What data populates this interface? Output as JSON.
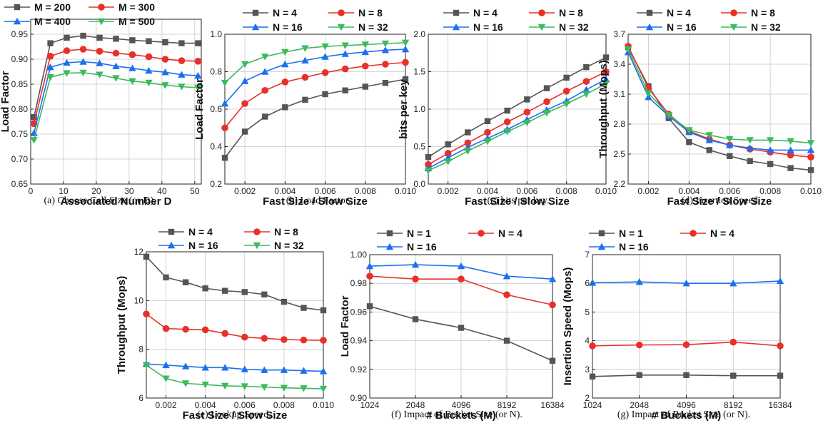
{
  "colors": {
    "gray": "#555555",
    "red": "#e8302a",
    "blue": "#1c6ff0",
    "green": "#3cba5d"
  },
  "chart_data": [
    {
      "id": "a",
      "type": "line",
      "caption": "(a)  Choose Cell Size (or D).",
      "xlabel": "Associated Number D",
      "ylabel": "Load Factor",
      "xlim": [
        0,
        52
      ],
      "ylim": [
        0.65,
        0.98
      ],
      "xticks": [
        "0",
        "10",
        "20",
        "30",
        "40",
        "50"
      ],
      "yticks": [
        "0.65",
        "0.70",
        "0.75",
        "0.80",
        "0.85",
        "0.90",
        "0.95"
      ],
      "x": [
        1,
        6,
        11,
        16,
        21,
        26,
        31,
        36,
        41,
        46,
        51
      ],
      "series": [
        {
          "name": "M = 200",
          "color": "gray",
          "marker": "square",
          "values": [
            0.784,
            0.932,
            0.943,
            0.947,
            0.943,
            0.941,
            0.938,
            0.936,
            0.934,
            0.932,
            0.932
          ]
        },
        {
          "name": "M = 300",
          "color": "red",
          "marker": "circle",
          "values": [
            0.771,
            0.906,
            0.917,
            0.92,
            0.916,
            0.912,
            0.909,
            0.905,
            0.9,
            0.897,
            0.896
          ]
        },
        {
          "name": "M = 400",
          "color": "blue",
          "marker": "triangle",
          "values": [
            0.752,
            0.884,
            0.893,
            0.895,
            0.892,
            0.886,
            0.882,
            0.877,
            0.874,
            0.869,
            0.867
          ]
        },
        {
          "name": "M = 500",
          "color": "green",
          "marker": "tri-down",
          "values": [
            0.738,
            0.864,
            0.872,
            0.873,
            0.869,
            0.862,
            0.856,
            0.853,
            0.848,
            0.845,
            0.843
          ]
        }
      ]
    },
    {
      "id": "b",
      "type": "line",
      "caption": "(b)  Load Factor.",
      "xlabel": "Fast Size / Slow Size",
      "ylabel": "Load Factor",
      "xlim": [
        0.001,
        0.01
      ],
      "ylim": [
        0.2,
        1.0
      ],
      "xticks": [
        "0.002",
        "0.004",
        "0.006",
        "0.008",
        "0.010"
      ],
      "yticks": [
        "0.2",
        "0.4",
        "0.6",
        "0.8",
        "1.0"
      ],
      "x": [
        0.001,
        0.002,
        0.003,
        0.004,
        0.005,
        0.006,
        0.007,
        0.008,
        0.009,
        0.01
      ],
      "series": [
        {
          "name": "N = 4",
          "color": "gray",
          "marker": "square",
          "values": [
            0.34,
            0.48,
            0.56,
            0.61,
            0.65,
            0.68,
            0.7,
            0.72,
            0.74,
            0.76
          ]
        },
        {
          "name": "N = 8",
          "color": "red",
          "marker": "circle",
          "values": [
            0.5,
            0.63,
            0.7,
            0.745,
            0.77,
            0.795,
            0.815,
            0.83,
            0.84,
            0.85
          ]
        },
        {
          "name": "N = 16",
          "color": "blue",
          "marker": "triangle",
          "values": [
            0.63,
            0.75,
            0.8,
            0.84,
            0.86,
            0.88,
            0.895,
            0.905,
            0.915,
            0.92
          ]
        },
        {
          "name": "N = 32",
          "color": "green",
          "marker": "tri-down",
          "values": [
            0.74,
            0.84,
            0.88,
            0.905,
            0.925,
            0.935,
            0.94,
            0.945,
            0.95,
            0.955
          ]
        }
      ]
    },
    {
      "id": "c",
      "type": "line",
      "caption": "(c)  bits per key.",
      "xlabel": "Fast Size / Slow Size",
      "ylabel": "bits per key",
      "xlim": [
        0.001,
        0.01
      ],
      "ylim": [
        0.0,
        2.0
      ],
      "xticks": [
        "0.002",
        "0.004",
        "0.006",
        "0.008",
        "0.010"
      ],
      "yticks": [
        "0.0",
        "0.5",
        "1.0",
        "1.5",
        "2.0"
      ],
      "x": [
        0.001,
        0.002,
        0.003,
        0.004,
        0.005,
        0.006,
        0.007,
        0.008,
        0.009,
        0.01
      ],
      "series": [
        {
          "name": "N = 4",
          "color": "gray",
          "marker": "square",
          "values": [
            0.36,
            0.53,
            0.69,
            0.84,
            0.98,
            1.13,
            1.28,
            1.42,
            1.56,
            1.69
          ]
        },
        {
          "name": "N = 8",
          "color": "red",
          "marker": "circle",
          "values": [
            0.26,
            0.41,
            0.55,
            0.69,
            0.83,
            0.96,
            1.1,
            1.24,
            1.37,
            1.5
          ]
        },
        {
          "name": "N = 16",
          "color": "blue",
          "marker": "triangle",
          "values": [
            0.21,
            0.35,
            0.49,
            0.61,
            0.73,
            0.86,
            0.99,
            1.11,
            1.26,
            1.4
          ]
        },
        {
          "name": "N = 32",
          "color": "green",
          "marker": "tri-down",
          "values": [
            0.18,
            0.3,
            0.44,
            0.57,
            0.7,
            0.82,
            0.95,
            1.07,
            1.2,
            1.34
          ]
        }
      ]
    },
    {
      "id": "d",
      "type": "line",
      "caption": "(d)  Insertion Speed.",
      "xlabel": "Fast Size / Slow Size",
      "ylabel": "Throughput (Mops)",
      "xlim": [
        0.001,
        0.01
      ],
      "ylim": [
        2.2,
        3.7
      ],
      "xticks": [
        "0.002",
        "0.004",
        "0.006",
        "0.008",
        "0.010"
      ],
      "yticks": [
        "2.2",
        "2.5",
        "2.8",
        "3.1",
        "3.4",
        "3.7"
      ],
      "x": [
        0.001,
        0.002,
        0.003,
        0.004,
        0.005,
        0.006,
        0.007,
        0.008,
        0.009,
        0.01
      ],
      "series": [
        {
          "name": "N = 4",
          "color": "gray",
          "marker": "square",
          "values": [
            3.57,
            3.18,
            2.86,
            2.62,
            2.54,
            2.48,
            2.43,
            2.4,
            2.36,
            2.34
          ]
        },
        {
          "name": "N = 8",
          "color": "red",
          "marker": "circle",
          "values": [
            3.58,
            3.16,
            2.9,
            2.73,
            2.65,
            2.59,
            2.55,
            2.52,
            2.49,
            2.47
          ]
        },
        {
          "name": "N = 16",
          "color": "blue",
          "marker": "triangle",
          "values": [
            3.52,
            3.07,
            2.88,
            2.72,
            2.64,
            2.59,
            2.56,
            2.54,
            2.54,
            2.54
          ]
        },
        {
          "name": "N = 32",
          "color": "green",
          "marker": "tri-down",
          "values": [
            3.55,
            3.11,
            2.89,
            2.74,
            2.69,
            2.65,
            2.64,
            2.64,
            2.63,
            2.61
          ]
        }
      ]
    },
    {
      "id": "e",
      "type": "line",
      "caption": "(e)  Lookup Speed.",
      "xlabel": "Fast Size / Slow Size",
      "ylabel": "Throughput (Mops)",
      "xlim": [
        0.001,
        0.01
      ],
      "ylim": [
        6,
        12
      ],
      "xticks": [
        "0.002",
        "0.004",
        "0.006",
        "0.008",
        "0.010"
      ],
      "yticks": [
        "6",
        "8",
        "10",
        "12"
      ],
      "x": [
        0.001,
        0.002,
        0.003,
        0.004,
        0.005,
        0.006,
        0.007,
        0.008,
        0.009,
        0.01
      ],
      "series": [
        {
          "name": "N = 4",
          "color": "gray",
          "marker": "square",
          "values": [
            11.8,
            10.95,
            10.75,
            10.5,
            10.4,
            10.35,
            10.25,
            9.95,
            9.7,
            9.6
          ]
        },
        {
          "name": "N = 8",
          "color": "red",
          "marker": "circle",
          "values": [
            9.45,
            8.85,
            8.82,
            8.8,
            8.65,
            8.5,
            8.45,
            8.4,
            8.38,
            8.37
          ]
        },
        {
          "name": "N = 16",
          "color": "blue",
          "marker": "triangle",
          "values": [
            7.4,
            7.35,
            7.3,
            7.25,
            7.25,
            7.18,
            7.15,
            7.15,
            7.12,
            7.1
          ]
        },
        {
          "name": "N = 32",
          "color": "green",
          "marker": "tri-down",
          "values": [
            7.35,
            6.8,
            6.6,
            6.55,
            6.5,
            6.48,
            6.45,
            6.42,
            6.4,
            6.38
          ]
        }
      ]
    },
    {
      "id": "f",
      "type": "line",
      "caption": "(f)  Impact of Bucket Size (or N).",
      "xlabel": "# Buckets (M)",
      "ylabel": "Load Factor",
      "xlim": [
        0,
        4
      ],
      "ylim": [
        0.9,
        1.0
      ],
      "xticks": [
        "1024",
        "2048",
        "4096",
        "8192",
        "16384"
      ],
      "yticks": [
        "0.90",
        "0.92",
        "0.94",
        "0.96",
        "0.98",
        "1.00"
      ],
      "x": [
        1024,
        2048,
        4096,
        8192,
        16384
      ],
      "series": [
        {
          "name": "N = 1",
          "color": "gray",
          "marker": "square",
          "values": [
            0.964,
            0.955,
            0.949,
            0.94,
            0.926
          ]
        },
        {
          "name": "N = 4",
          "color": "red",
          "marker": "circle",
          "values": [
            0.985,
            0.983,
            0.983,
            0.972,
            0.965
          ]
        },
        {
          "name": "N = 16",
          "color": "blue",
          "marker": "triangle",
          "values": [
            0.992,
            0.993,
            0.992,
            0.985,
            0.983
          ]
        }
      ]
    },
    {
      "id": "g",
      "type": "line",
      "caption": "(g)  Impact of Bucket Size (or N).",
      "xlabel": "# Buckets (M)",
      "ylabel": "Insertion Speed (Mops)",
      "xlim": [
        0,
        4
      ],
      "ylim": [
        2,
        7
      ],
      "xticks": [
        "1024",
        "2048",
        "4096",
        "8192",
        "16384"
      ],
      "yticks": [
        "2",
        "3",
        "4",
        "5",
        "6",
        "7"
      ],
      "x": [
        1024,
        2048,
        4096,
        8192,
        16384
      ],
      "series": [
        {
          "name": "N = 1",
          "color": "gray",
          "marker": "square",
          "values": [
            2.75,
            2.8,
            2.8,
            2.78,
            2.78
          ]
        },
        {
          "name": "N = 4",
          "color": "red",
          "marker": "circle",
          "values": [
            3.82,
            3.85,
            3.86,
            3.95,
            3.82
          ]
        },
        {
          "name": "N = 16",
          "color": "blue",
          "marker": "triangle",
          "values": [
            6.02,
            6.05,
            6.0,
            6.0,
            6.08
          ]
        }
      ]
    }
  ]
}
